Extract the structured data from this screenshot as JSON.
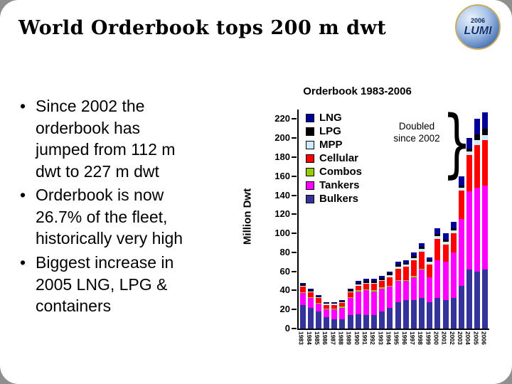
{
  "slide": {
    "title": "World Orderbook tops 200 m dwt",
    "bullets": [
      "Since 2002 the orderbook has jumped from 112 m dwt to 227 m dwt",
      "Orderbook is now 26.7% of the fleet, historically very high",
      "Biggest increase in 2005 LNG, LPG & containers"
    ],
    "logo": {
      "year": "2006",
      "text": "LUMI"
    }
  },
  "chart_data": {
    "type": "bar",
    "stacked": true,
    "title": "Orderbook 1983-2006",
    "ylabel": "Million Dwt",
    "ylim": [
      0,
      220
    ],
    "ytick_step": 20,
    "grid": false,
    "legend_position": "inside-top-left",
    "annotation": "Doubled since 2002",
    "categories": [
      "1983",
      "1984",
      "1985",
      "1986",
      "1987",
      "1988",
      "1989",
      "1990",
      "1991",
      "1992",
      "1993",
      "1994",
      "1995",
      "1996",
      "1997",
      "1998",
      "1999",
      "2000",
      "2001",
      "2002",
      "2003",
      "2004",
      "2005",
      "2006"
    ],
    "series": [
      {
        "name": "LNG",
        "color": "#000099",
        "values": [
          2,
          2,
          1,
          1,
          1,
          1,
          1,
          2,
          2,
          2,
          2,
          2,
          3,
          3,
          4,
          4,
          3,
          6,
          7,
          7,
          10,
          11,
          16,
          17
        ]
      },
      {
        "name": "LPG",
        "color": "#000000",
        "values": [
          1,
          1,
          1,
          1,
          1,
          1,
          2,
          2,
          2,
          2,
          2,
          2,
          2,
          2,
          2,
          2,
          2,
          2,
          2,
          2,
          2,
          3,
          6,
          7
        ]
      },
      {
        "name": "MPP",
        "color": "#CCECFF",
        "values": [
          1,
          1,
          1,
          1,
          1,
          1,
          1,
          1,
          1,
          1,
          1,
          2,
          2,
          2,
          2,
          3,
          3,
          3,
          3,
          3,
          3,
          4,
          5,
          5
        ]
      },
      {
        "name": "Cellular",
        "color": "#FF0000",
        "values": [
          6,
          5,
          5,
          4,
          4,
          4,
          5,
          5,
          6,
          7,
          7,
          9,
          12,
          14,
          17,
          18,
          13,
          22,
          18,
          20,
          30,
          38,
          45,
          48
        ]
      },
      {
        "name": "Combos",
        "color": "#99CC00",
        "values": [
          1,
          1,
          1,
          1,
          1,
          1,
          1,
          1,
          1,
          1,
          1,
          1,
          1,
          1,
          1,
          1,
          0,
          0,
          0,
          0,
          0,
          0,
          0,
          0
        ]
      },
      {
        "name": "Tankers",
        "color": "#FF00FF",
        "values": [
          12,
          10,
          8,
          8,
          10,
          12,
          18,
          24,
          26,
          25,
          24,
          22,
          22,
          20,
          24,
          30,
          26,
          40,
          40,
          48,
          70,
          82,
          88,
          88
        ]
      },
      {
        "name": "Bulkers",
        "color": "#333399",
        "values": [
          25,
          22,
          18,
          12,
          10,
          10,
          14,
          15,
          14,
          14,
          18,
          22,
          28,
          30,
          30,
          32,
          28,
          32,
          30,
          32,
          45,
          62,
          60,
          62
        ]
      }
    ]
  }
}
